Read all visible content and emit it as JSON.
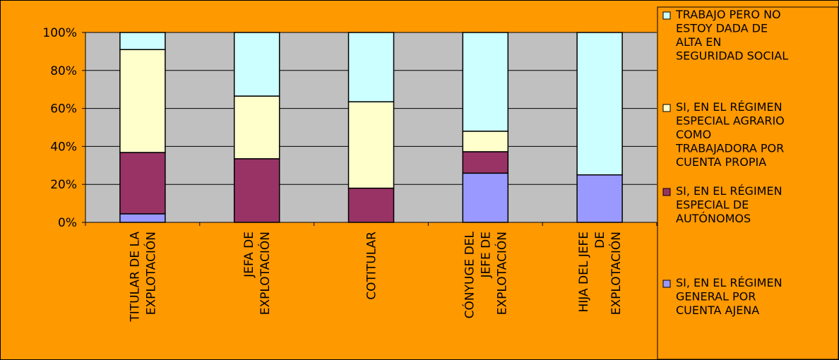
{
  "chart_data": {
    "type": "bar",
    "stacked": "percent",
    "categories": [
      [
        "TITULAR DE LA",
        "EXPLOTACIÓN"
      ],
      [
        "JEFA DE",
        "EXPLOTACIÓN"
      ],
      [
        "COTITULAR"
      ],
      [
        "CÓNYUGE DEL",
        "JEFE DE",
        "EXPLOTACIÓN"
      ],
      [
        "HIJA DEL JEFE",
        "DE",
        "EXPLOTACIÓN"
      ]
    ],
    "series": [
      {
        "name": [
          "SI, EN EL RÉGIMEN",
          "GENERAL POR",
          "CUENTA AJENA"
        ],
        "color": "#9999ff",
        "values": [
          4.5,
          0,
          0,
          25.9,
          25
        ]
      },
      {
        "name": [
          "SI, EN EL RÉGIMEN",
          "ESPECIAL DE",
          "AUTÓNOMOS"
        ],
        "color": "#993366",
        "values": [
          32.3,
          33.5,
          18,
          11.3,
          0
        ]
      },
      {
        "name": [
          "SI, EN EL RÉGIMEN",
          "ESPECIAL AGRARIO",
          "COMO",
          "TRABAJADORA POR",
          "CUENTA PROPIA"
        ],
        "color": "#ffffcc",
        "values": [
          54.2,
          33,
          45.5,
          10.8,
          0
        ]
      },
      {
        "name": [
          "TRABAJO PERO NO",
          "ESTOY DADA DE",
          "ALTA EN",
          "SEGURIDAD SOCIAL"
        ],
        "color": "#ccffff",
        "values": [
          9,
          33.5,
          36.5,
          52,
          75
        ]
      }
    ],
    "y_ticks": [
      "0%",
      "20%",
      "40%",
      "60%",
      "80%",
      "100%"
    ],
    "ylim": [
      0,
      100
    ],
    "grid": true,
    "legend_position": "right",
    "background": "#ff9900",
    "plot_background": "#c0c0c0"
  }
}
